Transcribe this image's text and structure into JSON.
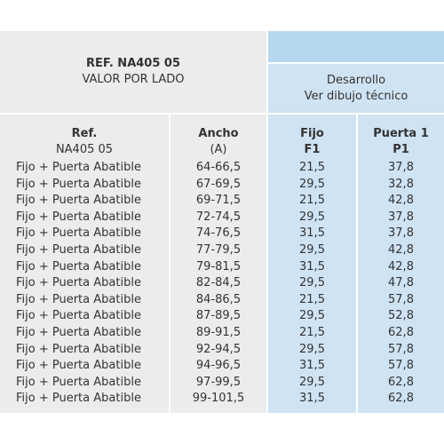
{
  "top_header": {
    "ref": "REF. NA405 05",
    "valor": "VALOR POR LADO",
    "desarrollo": "Desarrollo",
    "ver_dibujo": "Ver dibujo técnico"
  },
  "columns": {
    "ref": [
      "Ref.",
      "NA405 05"
    ],
    "ancho": [
      "Ancho",
      "(A)"
    ],
    "fijo": [
      "Fijo",
      "F1"
    ],
    "puerta": [
      "Puerta 1",
      "P1"
    ]
  },
  "rows": [
    {
      "ref": "Fijo + Puerta Abatible",
      "ancho": "64-66,5",
      "fijo": "21,5",
      "puerta": "37,8"
    },
    {
      "ref": "Fijo + Puerta Abatible",
      "ancho": "67-69,5",
      "fijo": "29,5",
      "puerta": "32,8"
    },
    {
      "ref": "Fijo + Puerta Abatible",
      "ancho": "69-71,5",
      "fijo": "21,5",
      "puerta": "42,8"
    },
    {
      "ref": "Fijo + Puerta Abatible",
      "ancho": "72-74,5",
      "fijo": "29,5",
      "puerta": "37,8"
    },
    {
      "ref": "Fijo + Puerta Abatible",
      "ancho": "74-76,5",
      "fijo": "31,5",
      "puerta": "37,8"
    },
    {
      "ref": "Fijo + Puerta Abatible",
      "ancho": "77-79,5",
      "fijo": "29,5",
      "puerta": "42,8"
    },
    {
      "ref": "Fijo + Puerta Abatible",
      "ancho": "79-81,5",
      "fijo": "31,5",
      "puerta": "42,8"
    },
    {
      "ref": "Fijo + Puerta Abatible",
      "ancho": "82-84,5",
      "fijo": "29,5",
      "puerta": "47,8"
    },
    {
      "ref": "Fijo + Puerta Abatible",
      "ancho": "84-86,5",
      "fijo": "21,5",
      "puerta": "57,8"
    },
    {
      "ref": "Fijo + Puerta Abatible",
      "ancho": "87-89,5",
      "fijo": "29,5",
      "puerta": "52,8"
    },
    {
      "ref": "Fijo + Puerta Abatible",
      "ancho": "89-91,5",
      "fijo": "21,5",
      "puerta": "62,8"
    },
    {
      "ref": "Fijo + Puerta Abatible",
      "ancho": "92-94,5",
      "fijo": "29,5",
      "puerta": "57,8"
    },
    {
      "ref": "Fijo + Puerta Abatible",
      "ancho": "94-96,5",
      "fijo": "31,5",
      "puerta": "57,8"
    },
    {
      "ref": "Fijo + Puerta Abatible",
      "ancho": "97-99,5",
      "fijo": "29,5",
      "puerta": "62,8"
    },
    {
      "ref": "Fijo + Puerta Abatible",
      "ancho": "99-101,5",
      "fijo": "31,5",
      "puerta": "62,8"
    }
  ]
}
